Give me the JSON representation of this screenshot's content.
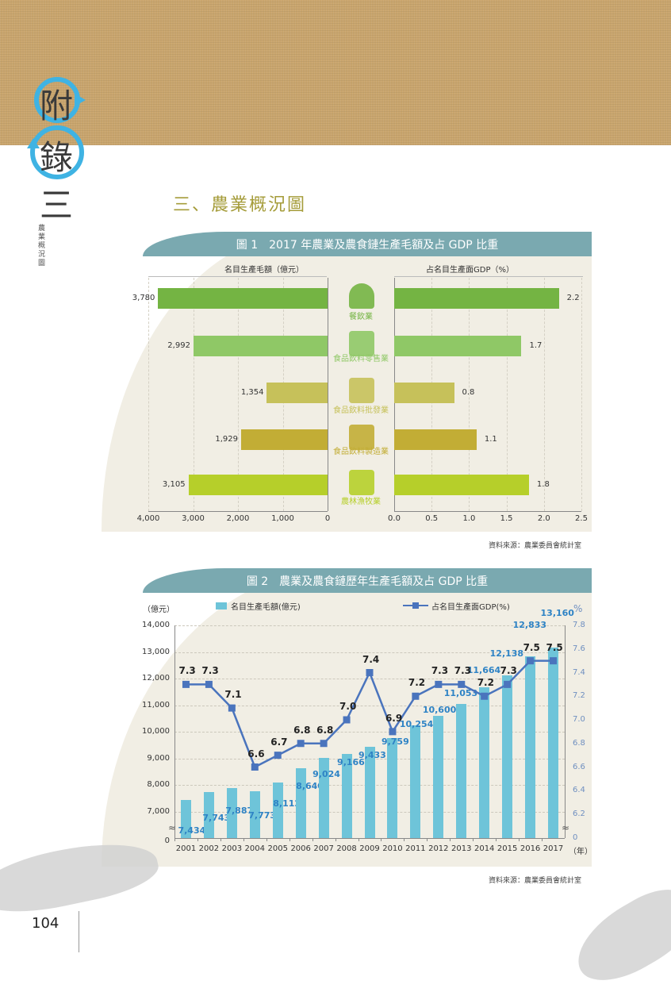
{
  "header": {
    "appendix_chars": [
      "附",
      "錄",
      "三"
    ],
    "side_label": "農業概況圖",
    "section_title": "三、農業概況圖"
  },
  "figure1": {
    "title": "圖 1　2017 年農業及農食鏈生產毛額及占 GDP 比重",
    "left_axis_title": "名目生產毛額（億元）",
    "right_axis_title": "占名目生產面GDP（%）",
    "source": "資料來源：農業委員會統計室"
  },
  "figure2": {
    "title": "圖 2　農業及農食鏈歷年生產毛額及占 GDP 比重",
    "left_unit": "（億元）",
    "right_unit": "%",
    "legend_bar": "名目生產毛額(億元)",
    "legend_line": "占名目生產面GDP(%)",
    "x_unit": "（年）",
    "source": "資料來源：農業委員會統計室"
  },
  "page": {
    "number": "104"
  },
  "colors": {
    "panel_bg": "#f1eee4",
    "title_bar": "#7aa9b0",
    "bar_blue": "#6ec4d9",
    "line_blue": "#4a74bd",
    "value_blue": "#2e83c5",
    "section_title": "#a59c3a"
  },
  "chart_data": [
    {
      "type": "bar",
      "title": "圖 1　2017 年農業及農食鏈生產毛額及占 GDP 比重",
      "orientation": "horizontal-butterfly",
      "categories": [
        "餐飲業",
        "食品飲料零售業",
        "食品飲料批發業",
        "食品飲料製造業",
        "農林漁牧業"
      ],
      "category_icons": [
        "serving-cloche-icon",
        "drink-cup-icon",
        "storefront-icon",
        "factory-icon",
        "lobster-fish-icon"
      ],
      "category_colors": [
        "#74b443",
        "#8fc866",
        "#c6c15a",
        "#c2ad35",
        "#b6cf2a"
      ],
      "series": [
        {
          "name": "名目生產毛額（億元）",
          "values": [
            3780,
            2992,
            1354,
            1929,
            3105
          ],
          "labels": [
            "3,780",
            "2,992",
            "1,354",
            "1,929",
            "3,105"
          ]
        },
        {
          "name": "占名目生產面GDP（%）",
          "values": [
            2.2,
            1.7,
            0.8,
            1.1,
            1.8
          ],
          "labels": [
            "2.2",
            "1.7",
            "0.8",
            "1.1",
            "1.8"
          ]
        }
      ],
      "left_ticks": [
        "4,000",
        "3,000",
        "2,000",
        "1,000",
        "0"
      ],
      "right_ticks": [
        "0.0",
        "0.5",
        "1.0",
        "1.5",
        "2.0",
        "2.5"
      ],
      "xlim_left": [
        0,
        4000
      ],
      "xlim_right": [
        0,
        2.5
      ],
      "grid": true
    },
    {
      "type": "bar+line",
      "title": "圖 2　農業及農食鏈歷年生產毛額及占 GDP 比重",
      "categories": [
        "2001",
        "2002",
        "2003",
        "2004",
        "2005",
        "2006",
        "2007",
        "2008",
        "2009",
        "2010",
        "2011",
        "2012",
        "2013",
        "2014",
        "2015",
        "2016",
        "2017"
      ],
      "series": [
        {
          "name": "名目生產毛額(億元)",
          "type": "bar",
          "axis": "left",
          "values": [
            7434,
            7743,
            7887,
            7773,
            8112,
            8640,
            9024,
            9166,
            9433,
            9759,
            10254,
            10600,
            11053,
            11664,
            12138,
            12833,
            13160
          ],
          "labels": [
            "7,434",
            "7,743",
            "7,887",
            "7,773",
            "8,112",
            "8,640",
            "9,024",
            "9,166",
            "9,433",
            "9,759",
            "10,254",
            "10,600",
            "11,053",
            "11,664",
            "12,138",
            "12,833",
            "13,160"
          ]
        },
        {
          "name": "占名目生產面GDP(%)",
          "type": "line",
          "axis": "right",
          "values": [
            7.3,
            7.3,
            7.1,
            6.6,
            6.7,
            6.8,
            6.8,
            7.0,
            7.4,
            6.9,
            7.2,
            7.3,
            7.3,
            7.2,
            7.3,
            7.5,
            7.5
          ],
          "labels": [
            "7.3",
            "7.3",
            "7.1",
            "6.6",
            "6.7",
            "6.8",
            "6.8",
            "7.0",
            "7.4",
            "6.9",
            "7.2",
            "7.3",
            "7.3",
            "7.2",
            "7.3",
            "7.5",
            "7.5"
          ]
        }
      ],
      "left_ticks": [
        "14,000",
        "13,000",
        "12,000",
        "11,000",
        "10,000",
        "9,000",
        "8,000",
        "7,000",
        "0"
      ],
      "right_ticks": [
        "7.8",
        "7.6",
        "7.4",
        "7.2",
        "7.0",
        "6.8",
        "6.6",
        "6.4",
        "6.2",
        "0"
      ],
      "ylim_left": [
        6000,
        14000
      ],
      "ylim_right": [
        6.0,
        7.8
      ],
      "xlabel": "（年）",
      "ylabel_left": "（億元）",
      "ylabel_right": "%",
      "axis_break": true,
      "grid": true,
      "legend_position": "top"
    }
  ]
}
